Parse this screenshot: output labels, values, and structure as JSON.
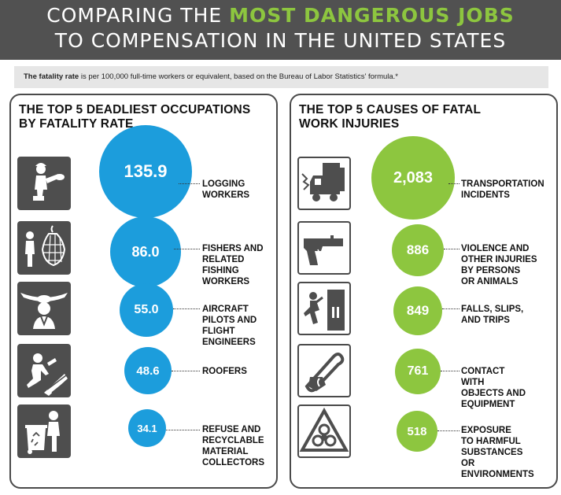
{
  "header": {
    "title_line1_prefix": "COMPARING THE ",
    "title_line1_highlight": "MOST DANGEROUS JOBS",
    "title_line2": "TO COMPENSATION IN THE UNITED STATES"
  },
  "note": {
    "bold": "The fatality rate",
    "text": " is per 100,000 full-time workers or equivalent, based on the Bureau of Labor Statistics' formula.*"
  },
  "left_panel": {
    "title_line1": "THE TOP 5 DEADLIEST OCCUPATIONS",
    "title_line2": "BY FATALITY RATE",
    "items": [
      {
        "value": "135.9",
        "label": [
          "LOGGING",
          "WORKERS"
        ],
        "icon": "logging-worker-icon"
      },
      {
        "value": "86.0",
        "label": [
          "FISHERS AND",
          "RELATED",
          "FISHING",
          "WORKERS"
        ],
        "icon": "fisher-icon"
      },
      {
        "value": "55.0",
        "label": [
          "AIRCRAFT",
          "PILOTS AND",
          "FLIGHT",
          "ENGINEERS"
        ],
        "icon": "pilot-icon"
      },
      {
        "value": "48.6",
        "label": [
          "ROOFERS"
        ],
        "icon": "roofer-icon"
      },
      {
        "value": "34.1",
        "label": [
          "REFUSE AND",
          "RECYCLABLE",
          "MATERIAL",
          "COLLECTORS"
        ],
        "icon": "refuse-collector-icon"
      }
    ]
  },
  "right_panel": {
    "title_line1": "THE TOP 5 CAUSES OF FATAL",
    "title_line2": "WORK INJURIES",
    "items": [
      {
        "value": "2,083",
        "label": [
          "TRANSPORTATION",
          "INCIDENTS"
        ],
        "icon": "truck-crash-icon"
      },
      {
        "value": "886",
        "label": [
          "VIOLENCE AND",
          "OTHER INJURIES",
          "BY PERSONS",
          "OR ANIMALS"
        ],
        "icon": "handgun-icon"
      },
      {
        "value": "849",
        "label": [
          "FALLS, SLIPS,",
          "AND TRIPS"
        ],
        "icon": "falling-person-icon"
      },
      {
        "value": "761",
        "label": [
          "CONTACT",
          "WITH",
          "OBJECTS AND",
          "EQUIPMENT"
        ],
        "icon": "chainsaw-icon"
      },
      {
        "value": "518",
        "label": [
          "EXPOSURE",
          "TO HARMFUL",
          "SUBSTANCES",
          "OR",
          "ENVIRONMENTS"
        ],
        "icon": "biohazard-icon"
      }
    ]
  },
  "colors": {
    "blue": "#1c9ddc",
    "green": "#8dc63f",
    "header_bg": "#515151"
  }
}
